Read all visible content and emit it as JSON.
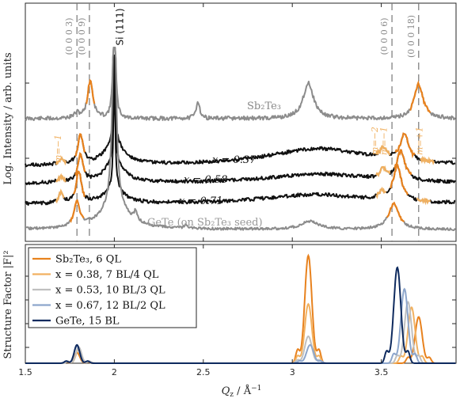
{
  "chart_data": [
    {
      "type": "line",
      "panel": "top",
      "ylabel": "Log. Intensity / arb. units",
      "xlim": [
        1.5,
        3.92
      ],
      "log_scale_y": true,
      "y_ticks_shown": false,
      "colors": {
        "Sb2Te3": "#8c8c8c",
        "x037": "#111111",
        "x058": "#111111",
        "x071": "#111111",
        "GeTe": "#8c8c8c",
        "highlight": "#e8821e",
        "light_highlight": "#f0b060"
      },
      "series_labels": [
        {
          "key": "Sb2Te3",
          "label": "Sb₂Te₃"
        },
        {
          "key": "x037",
          "label": "x = 0.37"
        },
        {
          "key": "x058",
          "label": "x = 0.58"
        },
        {
          "key": "x071",
          "label": "x = 0.71"
        },
        {
          "key": "GeTe",
          "label": "GeTe (on Sb₂Te₃ seed)"
        }
      ],
      "reference_lines": [
        {
          "x": 1.79,
          "label": "(0 0 0 3)"
        },
        {
          "x": 1.86,
          "label": "(0 0 0 9)"
        },
        {
          "x": 3.56,
          "label": "(0 0 0 6)"
        },
        {
          "x": 3.71,
          "label": "(0 0 0 18)"
        }
      ],
      "substrate_peak": {
        "x": 2.0,
        "label": "Si (111)"
      },
      "satellite_labels": [
        {
          "x": 1.71,
          "label": "m=−1"
        },
        {
          "x": 3.48,
          "label": "m=−2"
        },
        {
          "x": 3.53,
          "label": "m=−1"
        },
        {
          "x": 3.73,
          "label": "m=+1"
        }
      ]
    },
    {
      "type": "line",
      "panel": "bottom",
      "xlabel": "Q_z / Å⁻¹",
      "ylabel": "Structure Factor |F|²",
      "xlim": [
        1.5,
        3.92
      ],
      "x_ticks": [
        1.5,
        2,
        2.5,
        3,
        3.5
      ],
      "series": [
        {
          "name": "Sb₂Te₃, 6 QL",
          "color": "#e8821e",
          "peaks": [
            [
              1.79,
              0.1
            ],
            [
              3.09,
              1.0
            ],
            [
              3.71,
              0.43
            ]
          ]
        },
        {
          "name": "x = 0.38, 7 BL/4 QL",
          "color": "#f2b160",
          "peaks": [
            [
              1.8,
              0.13
            ],
            [
              3.09,
              0.55
            ],
            [
              3.67,
              0.52
            ]
          ]
        },
        {
          "name": "x = 0.53, 10 BL/3 QL",
          "color": "#c0c0c0",
          "peaks": [
            [
              1.8,
              0.15
            ],
            [
              3.09,
              0.25
            ],
            [
              3.65,
              0.57
            ]
          ]
        },
        {
          "name": "x = 0.67, 12 BL/2 QL",
          "color": "#8da6cc",
          "peaks": [
            [
              1.79,
              0.16
            ],
            [
              3.1,
              0.17
            ],
            [
              3.63,
              0.69
            ]
          ]
        },
        {
          "name": "GeTe, 15 BL",
          "color": "#0e2a5e",
          "peaks": [
            [
              1.79,
              0.17
            ],
            [
              3.59,
              0.89
            ]
          ]
        }
      ]
    }
  ]
}
